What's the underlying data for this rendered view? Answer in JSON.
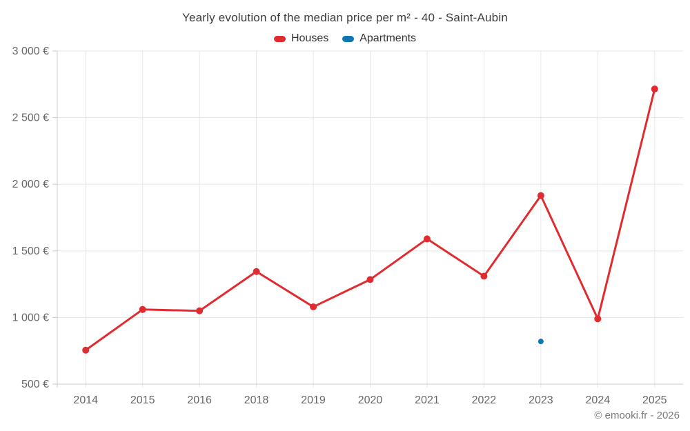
{
  "header": {
    "title": "Yearly evolution of the median price per m² - 40 - Saint-Aubin",
    "legend": [
      {
        "label": "Houses",
        "color": "#e02b30",
        "swatch_icon": "series-swatch"
      },
      {
        "label": "Apartments",
        "color": "#0e76b1",
        "swatch_icon": "series-swatch"
      }
    ]
  },
  "footer": {
    "copyright": "© emooki.fr - 2026"
  },
  "chart_data": {
    "type": "line",
    "title": "Yearly evolution of the median price per m² - 40 - Saint-Aubin",
    "xlabel": "",
    "ylabel": "",
    "categories": [
      "2014",
      "2015",
      "2016",
      "2018",
      "2019",
      "2020",
      "2021",
      "2022",
      "2023",
      "2024",
      "2025"
    ],
    "ylim": [
      500,
      3000
    ],
    "grid": true,
    "legend_position": "top",
    "currency": "€",
    "yticks": [
      {
        "value": 500,
        "label": "500 €"
      },
      {
        "value": 1000,
        "label": "1 000 €"
      },
      {
        "value": 1500,
        "label": "1 500 €"
      },
      {
        "value": 2000,
        "label": "2 000 €"
      },
      {
        "value": 2500,
        "label": "2 500 €"
      },
      {
        "value": 3000,
        "label": "3 000 €"
      }
    ],
    "series": [
      {
        "name": "Houses",
        "type": "line",
        "color": "#e02b30",
        "marker_radius": 5,
        "line_width": 3,
        "points": [
          {
            "x": "2014",
            "y": 755
          },
          {
            "x": "2015",
            "y": 1060
          },
          {
            "x": "2016",
            "y": 1050
          },
          {
            "x": "2018",
            "y": 1345
          },
          {
            "x": "2019",
            "y": 1080
          },
          {
            "x": "2020",
            "y": 1285
          },
          {
            "x": "2021",
            "y": 1590
          },
          {
            "x": "2022",
            "y": 1310
          },
          {
            "x": "2023",
            "y": 1915
          },
          {
            "x": "2024",
            "y": 990
          },
          {
            "x": "2025",
            "y": 2715
          }
        ]
      },
      {
        "name": "Apartments",
        "type": "scatter",
        "color": "#0e76b1",
        "marker_radius": 4,
        "line_width": 0,
        "points": [
          {
            "x": "2023",
            "y": 820
          }
        ]
      }
    ],
    "colors": {
      "grid": "#e7e7e7",
      "axis": "#cccccc",
      "tick_label": "#666666",
      "title": "#3d3d3d"
    }
  }
}
